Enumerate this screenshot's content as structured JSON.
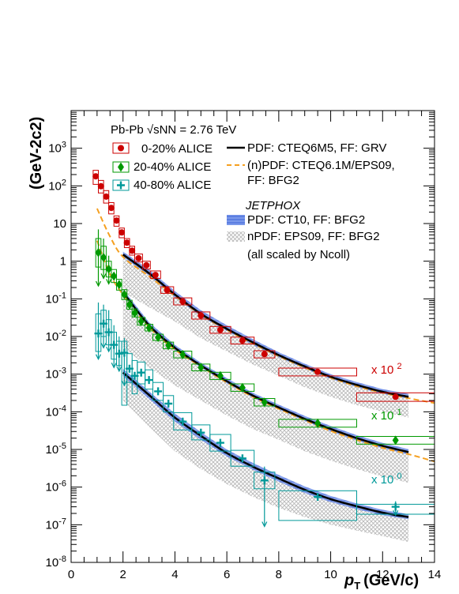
{
  "chart_data": {
    "type": "scatter",
    "title": "",
    "xlabel_main": "p",
    "xlabel_sub": "T",
    "xlabel_unit": "(GeV/c)",
    "ylabel_text": "(GeV-2c2)",
    "xlim": [
      0,
      14
    ],
    "ylim": [
      1e-08,
      10000
    ],
    "yscale": "log",
    "x_ticks": [
      "0",
      "2",
      "4",
      "6",
      "8",
      "10",
      "12",
      "14"
    ],
    "y_ticks": [
      "10-8",
      "10-7",
      "10-6",
      "10-5",
      "10-4",
      "10-3",
      "10-2",
      "10-1",
      "1",
      "10",
      "102",
      "103"
    ],
    "legend_header": "Pb-Pb √sNN = 2.76 TeV",
    "legend": {
      "alice": [
        "0-20% ALICE",
        "20-40% ALICE",
        "40-80% ALICE"
      ],
      "curves": [
        "PDF: CTEQ6M5, FF: GRV",
        "(n)PDF: CTEQ6.1M/EPS09,",
        "FF: BFG2"
      ],
      "jetphox_title": "JETPHOX",
      "bands": [
        "PDF: CT10, FF: BFG2",
        "nPDF: EPS09, FF: BFG2"
      ],
      "scaling_note": "(all scaled by Ncoll)"
    },
    "scale_labels": [
      "x 102",
      "x 101",
      "x 100"
    ],
    "colors": {
      "c0_20": "#cc0000",
      "c20_40": "#009900",
      "c40_80": "#009999",
      "ct10_band": "#5b7fe0",
      "eps09_band": "#bbbbbb",
      "cteq6m5": "#000000",
      "cteq61m": "#f5a020"
    },
    "series": [
      {
        "name": "0-20% ALICE",
        "color": "#cc0000",
        "marker": "circle",
        "points": [
          {
            "x": 0.95,
            "y": 180,
            "xl": 0.85,
            "xh": 1.05,
            "sl": 110,
            "sh": 260
          },
          {
            "x": 1.15,
            "y": 98,
            "xl": 1.05,
            "xh": 1.25,
            "sl": 65,
            "sh": 140
          },
          {
            "x": 1.35,
            "y": 52,
            "xl": 1.25,
            "xh": 1.45,
            "sl": 35,
            "sh": 75
          },
          {
            "x": 1.55,
            "y": 26,
            "xl": 1.45,
            "xh": 1.65,
            "sl": 18,
            "sh": 36
          },
          {
            "x": 1.75,
            "y": 12,
            "xl": 1.65,
            "xh": 1.85,
            "sl": 8.5,
            "sh": 16
          },
          {
            "x": 1.95,
            "y": 5.8,
            "xl": 1.85,
            "xh": 2.05,
            "sl": 4.2,
            "sh": 7.6
          },
          {
            "x": 2.15,
            "y": 3.1,
            "xl": 2.05,
            "xh": 2.25,
            "sl": 2.3,
            "sh": 4
          },
          {
            "x": 2.35,
            "y": 1.9,
            "xl": 2.25,
            "xh": 2.45,
            "sl": 1.45,
            "sh": 2.5
          },
          {
            "x": 2.6,
            "y": 1.2,
            "xl": 2.45,
            "xh": 2.75,
            "sl": 0.95,
            "sh": 1.55
          },
          {
            "x": 2.9,
            "y": 0.78,
            "xl": 2.75,
            "xh": 3.05,
            "sl": 0.62,
            "sh": 1.0
          },
          {
            "x": 3.25,
            "y": 0.43,
            "xl": 3.05,
            "xh": 3.45,
            "sl": 0.35,
            "sh": 0.55
          },
          {
            "x": 3.7,
            "y": 0.17,
            "xl": 3.45,
            "xh": 3.95,
            "sl": 0.14,
            "sh": 0.21
          },
          {
            "x": 4.3,
            "y": 0.085,
            "xl": 3.95,
            "xh": 4.65,
            "sl": 0.069,
            "sh": 0.106
          },
          {
            "x": 5.0,
            "y": 0.036,
            "xl": 4.65,
            "xh": 5.35,
            "sl": 0.029,
            "sh": 0.045
          },
          {
            "x": 5.75,
            "y": 0.015,
            "xl": 5.35,
            "xh": 6.15,
            "sl": 0.0122,
            "sh": 0.0185
          },
          {
            "x": 6.6,
            "y": 0.0078,
            "xl": 6.15,
            "xh": 7.05,
            "sl": 0.0063,
            "sh": 0.0096
          },
          {
            "x": 7.45,
            "y": 0.0034,
            "xl": 7.05,
            "xh": 7.85,
            "sl": 0.0027,
            "sh": 0.0042
          },
          {
            "x": 9.5,
            "y": 0.00115,
            "xl": 8.0,
            "xh": 11.0,
            "sl": 0.0009,
            "sh": 0.00145
          },
          {
            "x": 12.5,
            "y": 0.00025,
            "xl": 11.0,
            "xh": 14.0,
            "sl": 0.00019,
            "sh": 0.00032
          }
        ]
      },
      {
        "name": "20-40% ALICE",
        "color": "#009900",
        "marker": "diamond",
        "points": [
          {
            "x": 1.05,
            "y": 1.7,
            "xl": 0.95,
            "xh": 1.15,
            "sl": 0.7,
            "sh": 4,
            "el": 0.22,
            "eh": 7
          },
          {
            "x": 1.25,
            "y": 1.25,
            "xl": 1.15,
            "xh": 1.35,
            "sl": 0.6,
            "sh": 2.5,
            "el": 0.35,
            "eh": 4
          },
          {
            "x": 1.45,
            "y": 0.62,
            "xl": 1.35,
            "xh": 1.55,
            "sl": 0.38,
            "sh": 1.0,
            "el": 0.25,
            "eh": 1.4
          },
          {
            "x": 1.65,
            "y": 0.4,
            "xl": 1.55,
            "xh": 1.75,
            "sl": 0.27,
            "sh": 0.6
          },
          {
            "x": 1.85,
            "y": 0.24,
            "xl": 1.75,
            "xh": 1.95,
            "sl": 0.17,
            "sh": 0.33
          },
          {
            "x": 2.05,
            "y": 0.13,
            "xl": 1.95,
            "xh": 2.15,
            "sl": 0.095,
            "sh": 0.175
          },
          {
            "x": 2.25,
            "y": 0.07,
            "xl": 2.15,
            "xh": 2.35,
            "sl": 0.053,
            "sh": 0.092
          },
          {
            "x": 2.45,
            "y": 0.042,
            "xl": 2.35,
            "xh": 2.55,
            "sl": 0.033,
            "sh": 0.054
          },
          {
            "x": 2.7,
            "y": 0.025,
            "xl": 2.55,
            "xh": 2.85,
            "sl": 0.02,
            "sh": 0.032
          },
          {
            "x": 3.0,
            "y": 0.017,
            "xl": 2.85,
            "xh": 3.15,
            "sl": 0.014,
            "sh": 0.021
          },
          {
            "x": 3.35,
            "y": 0.0095,
            "xl": 3.15,
            "xh": 3.55,
            "sl": 0.0078,
            "sh": 0.0115
          },
          {
            "x": 3.75,
            "y": 0.0058,
            "xl": 3.55,
            "xh": 3.95,
            "sl": 0.0047,
            "sh": 0.0071
          },
          {
            "x": 4.3,
            "y": 0.0033,
            "xl": 3.95,
            "xh": 4.65,
            "sl": 0.0027,
            "sh": 0.0041
          },
          {
            "x": 5.0,
            "y": 0.0015,
            "xl": 4.65,
            "xh": 5.35,
            "sl": 0.00122,
            "sh": 0.00185
          },
          {
            "x": 5.75,
            "y": 0.0009,
            "xl": 5.35,
            "xh": 6.15,
            "sl": 0.00072,
            "sh": 0.00112
          },
          {
            "x": 6.6,
            "y": 0.00044,
            "xl": 6.15,
            "xh": 7.05,
            "sl": 0.00035,
            "sh": 0.00055
          },
          {
            "x": 7.45,
            "y": 0.00018,
            "xl": 7.05,
            "xh": 7.85,
            "sl": 0.000142,
            "sh": 0.000225
          },
          {
            "x": 9.5,
            "y": 5e-05,
            "xl": 8.0,
            "xh": 11.0,
            "sl": 3.9e-05,
            "sh": 6.3e-05
          },
          {
            "x": 12.5,
            "y": 1.75e-05,
            "xl": 11.0,
            "xh": 14.0,
            "sl": 1.38e-05,
            "sh": 2.22e-05
          }
        ]
      },
      {
        "name": "40-80% ALICE",
        "color": "#009999",
        "marker": "cross",
        "points": [
          {
            "x": 1.05,
            "y": 0.012,
            "xl": 0.95,
            "xh": 1.15,
            "sl": 0.004,
            "sh": 0.04,
            "el": 0.0025,
            "eh": 0.08
          },
          {
            "x": 1.25,
            "y": 0.022,
            "xl": 1.15,
            "xh": 1.35,
            "sl": 0.01,
            "sh": 0.05,
            "el": 0.005,
            "eh": 0.07
          },
          {
            "x": 1.45,
            "y": 0.013,
            "xl": 1.35,
            "xh": 1.55,
            "sl": 0.006,
            "sh": 0.028,
            "el": 0.004,
            "eh": 0.05
          },
          {
            "x": 1.65,
            "y": 0.006,
            "xl": 1.55,
            "xh": 1.75,
            "sl": 0.0025,
            "sh": 0.013,
            "el": 0.0015,
            "eh": 0.02
          },
          {
            "x": 1.85,
            "y": 0.0035,
            "xl": 1.75,
            "xh": 1.95,
            "sl": 0.0017,
            "sh": 0.0075,
            "el": 0.0012,
            "eh": 0.01
          },
          {
            "x": 2.05,
            "y": 0.0037,
            "xl": 1.95,
            "xh": 2.15,
            "sl": 0.00015,
            "sh": 0.0075,
            "el": 0.0005,
            "eh": 0.009
          },
          {
            "x": 2.25,
            "y": 0.0014,
            "xl": 2.15,
            "xh": 2.35,
            "sl": 0.0006,
            "sh": 0.0035
          },
          {
            "x": 2.45,
            "y": 0.0009,
            "xl": 2.35,
            "xh": 2.55,
            "sl": 0.0003,
            "sh": 0.0023
          },
          {
            "x": 2.7,
            "y": 0.0011,
            "xl": 2.55,
            "xh": 2.85,
            "sl": 0.00055,
            "sh": 0.0021
          },
          {
            "x": 3.0,
            "y": 0.0007,
            "xl": 2.85,
            "xh": 3.15,
            "sl": 0.0004,
            "sh": 0.0013
          },
          {
            "x": 3.35,
            "y": 0.00035,
            "xl": 3.15,
            "xh": 3.55,
            "sl": 0.0002,
            "sh": 0.0006
          },
          {
            "x": 3.75,
            "y": 0.000165,
            "xl": 3.55,
            "xh": 3.95,
            "sl": 0.0001,
            "sh": 0.00027
          },
          {
            "x": 4.3,
            "y": 5.5e-05,
            "xl": 3.95,
            "xh": 4.65,
            "sl": 3.3e-05,
            "sh": 9.5e-05
          },
          {
            "x": 5.0,
            "y": 2.8e-05,
            "xl": 4.65,
            "xh": 5.35,
            "sl": 1.8e-05,
            "sh": 4.5e-05
          },
          {
            "x": 5.75,
            "y": 1.5e-05,
            "xl": 5.35,
            "xh": 6.15,
            "sl": 9e-06,
            "sh": 2.5e-05
          },
          {
            "x": 6.6,
            "y": 5.8e-06,
            "xl": 6.15,
            "xh": 7.05,
            "sl": 3.6e-06,
            "sh": 9.5e-06
          },
          {
            "x": 7.45,
            "y": 1.5e-06,
            "xl": 7.05,
            "xh": 7.85,
            "sl": 9e-07,
            "sh": 2.5e-06,
            "el": 9e-08,
            "eh": 3.5e-06
          },
          {
            "x": 9.5,
            "y": 5.5e-07,
            "xl": 8.0,
            "xh": 11.0,
            "sl": 1.3e-07,
            "sh": 8e-07
          },
          {
            "x": 12.5,
            "y": 3e-07,
            "xl": 11.0,
            "xh": 14.0,
            "sl": 1.9e-07,
            "sh": 3.5e-07,
            "el": 1.8e-07,
            "eh": 4.2e-07
          }
        ]
      }
    ],
    "curves": [
      {
        "name": "PDF: CTEQ6M5, FF: GRV",
        "color": "#000000",
        "style": "solid",
        "x": [
          2,
          3,
          4,
          5,
          6,
          7,
          8,
          9,
          10,
          11,
          12,
          13
        ],
        "sets": [
          [
            1.5,
            0.48,
            0.13,
            0.04,
            0.016,
            0.007,
            0.0032,
            0.0016,
            0.00085,
            0.00052,
            0.00034,
            0.00025
          ],
          [
            0.15,
            0.02,
            0.005,
            0.0017,
            0.00065,
            0.00027,
            0.00013,
            6.5e-05,
            3.5e-05,
            2e-05,
            1.25e-05,
            8.5e-06
          ],
          [
            0.0011,
            0.00028,
            7e-05,
            2.3e-05,
            8e-06,
            3.5e-06,
            1.7e-06,
            8.5e-07,
            4.8e-07,
            3.1e-07,
            2.1e-07,
            1.6e-07
          ]
        ]
      },
      {
        "name": "(n)PDF: CTEQ6.1M/EPS09, FF: BFG2",
        "color": "#f5a020",
        "style": "dashed",
        "x": [
          1,
          1.5,
          2,
          3,
          4,
          5,
          6,
          7,
          8,
          9,
          10,
          11,
          12,
          13,
          14
        ],
        "sets": [
          [
            25,
            4.5,
            1.3,
            0.4,
            0.12,
            0.038,
            0.015,
            0.0065,
            0.003,
            0.0015,
            0.0008,
            0.00048,
            0.00032,
            0.00023,
            0.00017
          ],
          [
            3.5,
            0.45,
            0.13,
            0.018,
            0.0045,
            0.0016,
            0.0006,
            0.00025,
            0.00012,
            6e-05,
            3.1e-05,
            1.8e-05,
            1.1e-05,
            7.5e-06,
            4.8e-06
          ]
        ]
      }
    ],
    "bands": [
      {
        "name": "PDF: CT10, FF: BFG2",
        "color": "#5b7fe0",
        "x": [
          2,
          3,
          4,
          5,
          6,
          7,
          8,
          9,
          10,
          11,
          12,
          13
        ],
        "sets": [
          {
            "lo": [
              1.3,
              0.42,
              0.11,
              0.034,
              0.014,
              0.006,
              0.0028,
              0.0014,
              0.00075,
              0.00045,
              0.0003,
              0.00022
            ],
            "hi": [
              1.8,
              0.6,
              0.16,
              0.05,
              0.02,
              0.0085,
              0.0038,
              0.0019,
              0.001,
              0.00062,
              0.0004,
              0.0003
            ]
          },
          {
            "lo": [
              0.13,
              0.017,
              0.0043,
              0.0015,
              0.00057,
              0.00024,
              0.000115,
              5.7e-05,
              3e-05,
              1.7e-05,
              1.08e-05,
              7.3e-06
            ],
            "hi": [
              0.18,
              0.024,
              0.006,
              0.002,
              0.00078,
              0.00032,
              0.000155,
              7.8e-05,
              4.2e-05,
              2.4e-05,
              1.5e-05,
              1.02e-05
            ]
          },
          {
            "lo": [
              0.0009,
              0.00022,
              5.5e-05,
              1.8e-05,
              6.5e-06,
              2.9e-06,
              1.4e-06,
              7e-07,
              4e-07,
              2.6e-07,
              1.8e-07,
              1.4e-07
            ],
            "hi": [
              0.0014,
              0.00035,
              9e-05,
              2.9e-05,
              1e-05,
              4.4e-06,
              2.1e-06,
              1.05e-06,
              5.8e-07,
              3.7e-07,
              2.5e-07,
              1.9e-07
            ]
          }
        ]
      },
      {
        "name": "nPDF: EPS09, FF: BFG2",
        "color": "#bbbbbb",
        "x": [
          2,
          3,
          4,
          5,
          6,
          7,
          8,
          9,
          10,
          11,
          12,
          13
        ],
        "sets": [
          {
            "lo": [
              0.15,
              0.06,
              0.025,
              0.009,
              0.004,
              0.0018,
              0.0009,
              0.00045,
              0.00025,
              0.00015,
              0.0001,
              7e-05
            ],
            "hi": [
              1.6,
              0.5,
              0.14,
              0.045,
              0.017,
              0.0075,
              0.0034,
              0.0017,
              0.0009,
              0.00055,
              0.00036,
              0.00026
            ]
          },
          {
            "lo": [
              0.005,
              0.0015,
              0.0005,
              0.0002,
              8e-05,
              3.5e-05,
              1.8e-05,
              9e-06,
              5e-06,
              3e-06,
              1.9e-06,
              1.3e-06
            ],
            "hi": [
              0.16,
              0.022,
              0.0055,
              0.0018,
              0.0007,
              0.00029,
              0.00014,
              7e-05,
              3.7e-05,
              2.1e-05,
              1.3e-05,
              8.8e-06
            ]
          },
          {
            "lo": [
              0.0002,
              4e-05,
              9e-06,
              3e-06,
              1.2e-06,
              5.5e-07,
              2.8e-07,
              1.6e-07,
              1e-07,
              7e-08,
              5e-08,
              3.5e-08
            ],
            "hi": [
              0.0013,
              0.00032,
              8e-05,
              2.6e-05,
              9.2e-06,
              4e-06,
              1.9e-06,
              9.5e-07,
              5.2e-07,
              3.3e-07,
              2.2e-07,
              1.7e-07
            ]
          }
        ]
      }
    ]
  }
}
